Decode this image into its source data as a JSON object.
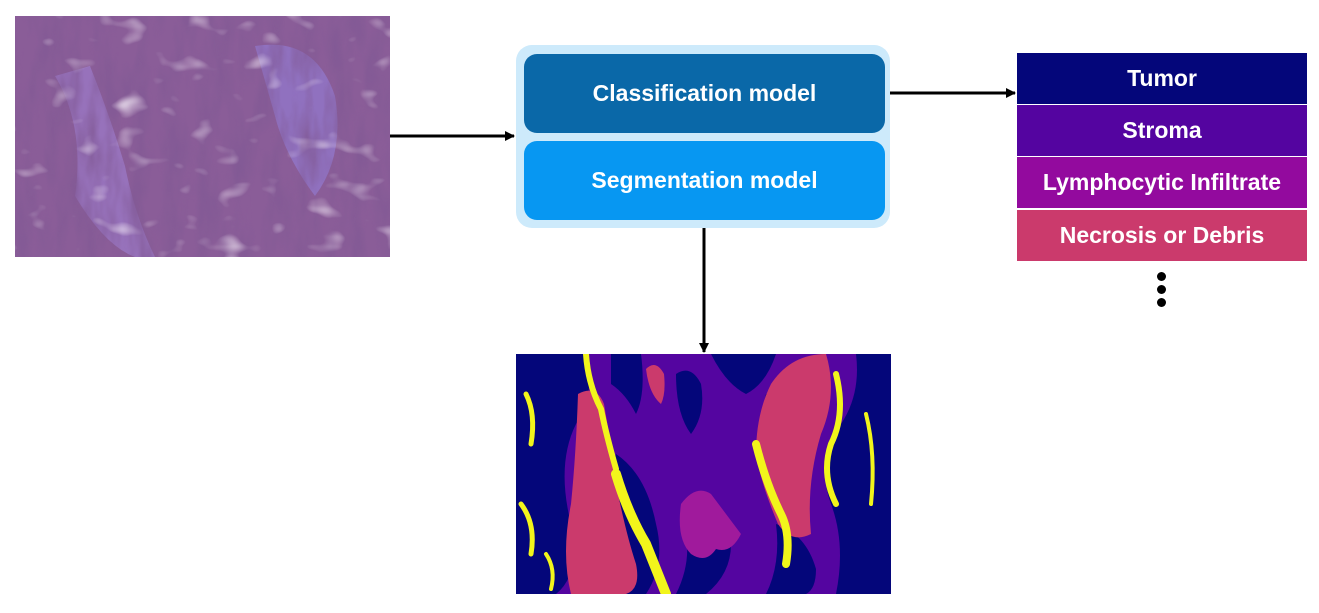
{
  "models": {
    "classification_label": "Classification model",
    "segmentation_label": "Segmentation model"
  },
  "classes": [
    {
      "label": "Tumor",
      "color": "#04067a"
    },
    {
      "label": "Stroma",
      "color": "#5404a0"
    },
    {
      "label": "Lymphocytic Infiltrate",
      "color": "#930a9e"
    },
    {
      "label": "Necrosis or Debris",
      "color": "#cb3a6c"
    }
  ],
  "more_indicator": "vertical-ellipsis-icon",
  "colors": {
    "container": "#cdeafb",
    "classification": "#0a68a8",
    "segmentation": "#0797f2",
    "seg_stroma": "#5405a0",
    "seg_tumor": "#04067a",
    "seg_necrosis": "#cb3a6c",
    "seg_other": "#f2f51b",
    "seg_lymph": "#a01a9c"
  }
}
